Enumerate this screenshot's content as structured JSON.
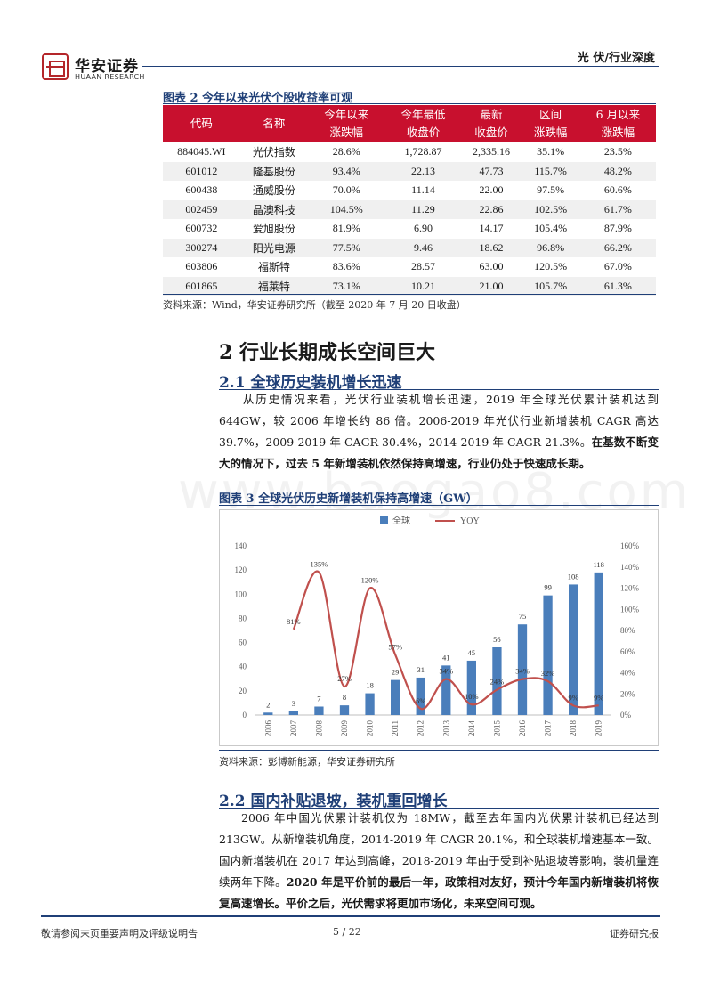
{
  "header": {
    "brand": "华安证券",
    "brand_sub": "HUAAN RESEARCH",
    "tag": "光  伏/行业深度"
  },
  "table": {
    "caption": "图表 2 今年以来光伏个股收益率可观",
    "headers": [
      [
        "代码"
      ],
      [
        "名称"
      ],
      [
        "今年以来",
        "涨跌幅"
      ],
      [
        "今年最低",
        "收盘价"
      ],
      [
        "最新",
        "收盘价"
      ],
      [
        "区间",
        "涨跌幅"
      ],
      [
        "6 月以来",
        "涨跌幅"
      ]
    ],
    "rows": [
      [
        "884045.WI",
        "光伏指数",
        "28.6%",
        "1,728.87",
        "2,335.16",
        "35.1%",
        "23.5%"
      ],
      [
        "601012",
        "隆基股份",
        "93.4%",
        "22.13",
        "47.73",
        "115.7%",
        "48.2%"
      ],
      [
        "600438",
        "通威股份",
        "70.0%",
        "11.14",
        "22.00",
        "97.5%",
        "60.6%"
      ],
      [
        "002459",
        "晶澳科技",
        "104.5%",
        "11.29",
        "22.86",
        "102.5%",
        "61.7%"
      ],
      [
        "600732",
        "爱旭股份",
        "81.9%",
        "6.90",
        "14.17",
        "105.4%",
        "87.9%"
      ],
      [
        "300274",
        "阳光电源",
        "77.5%",
        "9.46",
        "18.62",
        "96.8%",
        "66.2%"
      ],
      [
        "603806",
        "福斯特",
        "83.6%",
        "28.57",
        "63.00",
        "120.5%",
        "67.0%"
      ],
      [
        "601865",
        "福莱特",
        "73.1%",
        "10.21",
        "21.00",
        "105.7%",
        "61.3%"
      ]
    ],
    "source": "资料来源：Wind，华安证券研究所（截至 2020 年 7 月 20 日收盘）"
  },
  "section2": {
    "title": "2 行业长期成长空间巨大",
    "sub1": {
      "title": "2.1  全球历史装机增长迅速",
      "para_normal": "从历史情况来看，光伏行业装机增长迅速，2019 年全球光伏累计装机达到 644GW，较 2006 年增长约 86 倍。2006-2019 年光伏行业新增装机 CAGR 高达 39.7%，2009-2019 年 CAGR 30.4%，2014-2019 年 CAGR 21.3%。",
      "para_bold": "在基数不断变大的情况下，过去 5 年新增装机依然保持高增速，行业仍处于快速成长期。"
    },
    "chart_caption": "图表 3 全球光伏历史新增装机保持高增速（GW）",
    "chart_source": "资料来源：彭博新能源，华安证券研究所",
    "sub2": {
      "title": "2.2  国内补贴退坡，装机重回增长",
      "para_normal": "2006 年中国光伏累计装机仅为 18MW，截至去年国内光伏累计装机已经达到 213GW。从新增装机角度，2014-2019 年 CAGR 20.1%，和全球装机增速基本一致。国内新增装机在 2017 年达到高峰，2018-2019 年由于受到补贴退坡等影响，装机量连续两年下降。",
      "para_bold": "2020 年是平价前的最后一年，政策相对友好，预计今年国内新增装机将恢复高速增长。平价之后，光伏需求将更加市场化，未来空间可观。"
    }
  },
  "chart_data": {
    "type": "bar",
    "categories": [
      "2006",
      "2007",
      "2008",
      "2009",
      "2010",
      "2011",
      "2012",
      "2013",
      "2014",
      "2015",
      "2016",
      "2017",
      "2018",
      "2019"
    ],
    "series": [
      {
        "name": "全球",
        "type": "bar",
        "axis": "left",
        "color": "#4a7ebb",
        "values": [
          2,
          3,
          7,
          8,
          18,
          29,
          31,
          41,
          45,
          56,
          75,
          99,
          108,
          118
        ]
      },
      {
        "name": "YOY",
        "type": "line",
        "axis": "right",
        "color": "#c0504d",
        "values": [
          null,
          81,
          135,
          27,
          120,
          57,
          6,
          34,
          10,
          24,
          34,
          32,
          9,
          9
        ]
      }
    ],
    "yoy_labels": [
      "",
      "81%",
      "135%",
      "27%",
      "120%",
      "57%",
      "6%",
      "34%",
      "10%",
      "24%",
      "34%",
      "32%",
      "9%",
      "9%"
    ],
    "y_left": {
      "min": 0,
      "max": 140,
      "ticks": [
        "0",
        "20",
        "40",
        "60",
        "80",
        "100",
        "120",
        "140"
      ]
    },
    "y_right": {
      "min": 0,
      "max": 160,
      "ticks": [
        "0%",
        "20%",
        "40%",
        "60%",
        "80%",
        "100%",
        "120%",
        "140%",
        "160%"
      ]
    },
    "legend_position": "top",
    "grid": false
  },
  "watermark": "www.baogao8.com",
  "footer": {
    "left": "敬请参阅末页重要声明及评级说明告",
    "page": "5 / 22",
    "right": "证券研究报"
  }
}
